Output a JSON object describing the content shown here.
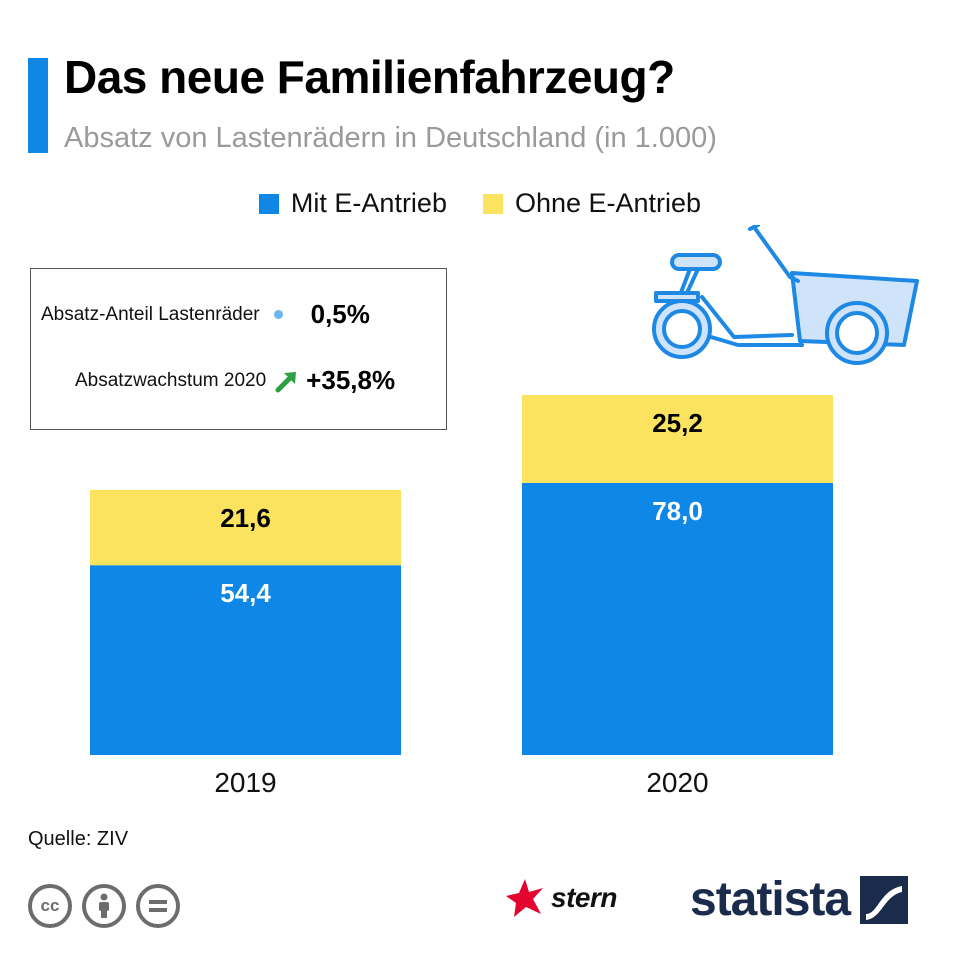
{
  "header": {
    "title": "Das neue Familienfahrzeug?",
    "subtitle": "Absatz von Lastenrädern in Deutschland (in 1.000)"
  },
  "info_box": {
    "share_label": "Absatz-Anteil Lastenräder",
    "share_value": "0,5%",
    "growth_label": "Absatzwachstum 2020",
    "growth_value": "+35,8%"
  },
  "chart_data": {
    "type": "bar",
    "stacked": true,
    "title": "Das neue Familienfahrzeug?",
    "subtitle": "Absatz von Lastenrädern in Deutschland (in 1.000)",
    "categories": [
      "2019",
      "2020"
    ],
    "series": [
      {
        "name": "Mit E-Antrieb",
        "values": [
          54.4,
          78.0
        ],
        "labels": [
          "54,4",
          "78,0"
        ],
        "color": "#0f87e6"
      },
      {
        "name": "Ohne E-Antrieb",
        "values": [
          21.6,
          25.2
        ],
        "labels": [
          "21,6",
          "25,2"
        ],
        "color": "#fbe35f"
      }
    ],
    "xlabel": "",
    "ylabel": "",
    "ylim": [
      0,
      103.2
    ],
    "legend_position": "top-center",
    "grid": false
  },
  "footer": {
    "source": "Quelle: ZIV",
    "brand_stern": "stern",
    "brand_statista": "statista"
  },
  "colors": {
    "accent": "#0f87e6",
    "e_antrieb": "#0f87e6",
    "ohne_e_antrieb": "#fbe35f",
    "growth_arrow": "#2ea043",
    "share_dot": "#6bb6ee",
    "statista_navy": "#1a2b4c",
    "stern_red": "#e4032e"
  }
}
